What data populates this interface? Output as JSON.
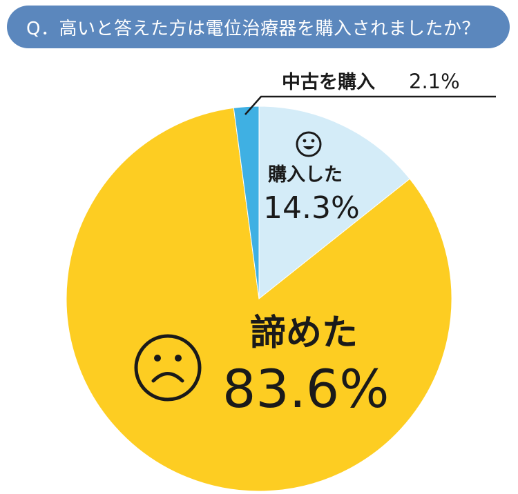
{
  "question": "Q．高いと答えた方は電位治療器を購入されましたか？",
  "colors": {
    "header_bg": "#5b87bd",
    "header_text": "#ffffff",
    "purchased": "#d4ecf8",
    "used": "#3fb0e3",
    "gave_up": "#fdcd22",
    "text": "#1a1a1a"
  },
  "chart_data": {
    "type": "pie",
    "title": "Q．高いと答えた方は電位治療器を購入されましたか？",
    "start": "12 o'clock, clockwise",
    "slices": [
      {
        "label": "購入した",
        "value_text": "14.3%",
        "value": 14.3,
        "color": "#d4ecf8",
        "icon": "smile-icon"
      },
      {
        "label": "諦めた",
        "value_text": "83.6%",
        "value": 83.6,
        "color": "#fdcd22",
        "icon": "frown-icon"
      },
      {
        "label": "中古を購入",
        "value_text": "2.1%",
        "value": 2.1,
        "color": "#3fb0e3",
        "icon": ""
      }
    ]
  }
}
